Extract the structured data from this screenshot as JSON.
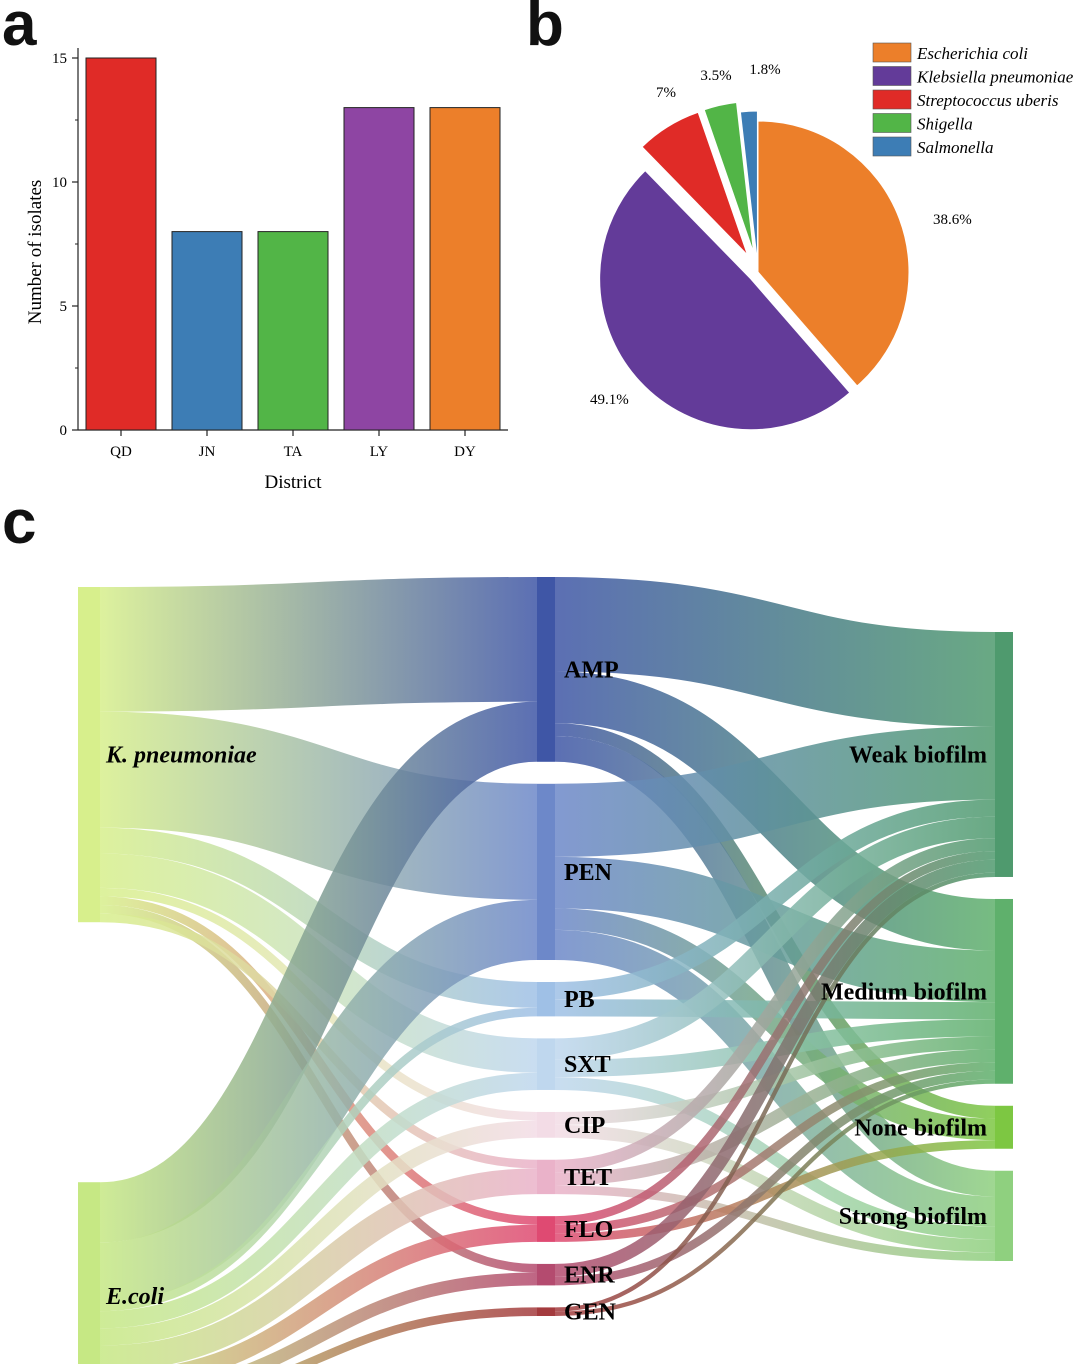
{
  "panels": {
    "a": "a",
    "b": "b",
    "c": "c"
  },
  "chart_data": [
    {
      "panel": "a",
      "type": "bar",
      "xlabel": "District",
      "ylabel": "Number of isolates",
      "ylim": [
        0,
        15
      ],
      "yticks": [
        0,
        5,
        10,
        15
      ],
      "categories": [
        "QD",
        "JN",
        "TA",
        "LY",
        "DY"
      ],
      "values": [
        15,
        8,
        8,
        13,
        13
      ],
      "colors": [
        "#e02b27",
        "#3d7db5",
        "#52b547",
        "#8e45a3",
        "#ec7f2a"
      ],
      "grid": false
    },
    {
      "panel": "b",
      "type": "pie",
      "slices": [
        {
          "name": "Escherichia coli",
          "percent": 38.6,
          "label": "38.6%",
          "color": "#ec7f2a",
          "exploded": false
        },
        {
          "name": "Klebsiella pneumoniae",
          "percent": 49.1,
          "label": "49.1%",
          "color": "#633b99",
          "exploded": true
        },
        {
          "name": "Streptococcus uberis",
          "percent": 7,
          "label": "7%",
          "color": "#e02b27",
          "exploded": true
        },
        {
          "name": "Shigella",
          "percent": 3.5,
          "label": "3.5%",
          "color": "#52b547",
          "exploded": true
        },
        {
          "name": "Salmonella",
          "percent": 1.8,
          "label": "1.8%",
          "color": "#3d7db5",
          "exploded": true
        }
      ],
      "legend_position": "top-right"
    },
    {
      "panel": "c",
      "type": "sankey",
      "columns": [
        {
          "nodes": [
            {
              "id": "kp",
              "label": "K. pneumoniae",
              "italic": true,
              "color": "#d7ef8c"
            },
            {
              "id": "ec",
              "label": "E.coli",
              "italic": true,
              "color": "#c6e884"
            }
          ]
        },
        {
          "nodes": [
            {
              "id": "AMP",
              "label": "AMP",
              "color": "#3f56a6"
            },
            {
              "id": "PEN",
              "label": "PEN",
              "color": "#6d88c9"
            },
            {
              "id": "PB",
              "label": "PB",
              "color": "#9fc0e6"
            },
            {
              "id": "SXT",
              "label": "SXT",
              "color": "#bfd7ee"
            },
            {
              "id": "CIP",
              "label": "CIP",
              "color": "#f3dce6"
            },
            {
              "id": "TET",
              "label": "TET",
              "color": "#eab2c9"
            },
            {
              "id": "FLO",
              "label": "FLO",
              "color": "#df4a72"
            },
            {
              "id": "ENR",
              "label": "ENR",
              "color": "#b44b6f"
            },
            {
              "id": "GEN",
              "label": "GEN",
              "color": "#a43b3e"
            }
          ]
        },
        {
          "nodes": [
            {
              "id": "weak",
              "label": "Weak biofilm",
              "color": "#4f9a6e"
            },
            {
              "id": "medium",
              "label": "Medium biofilm",
              "color": "#5fb06c"
            },
            {
              "id": "none",
              "label": "None biofilm",
              "color": "#7dc742"
            },
            {
              "id": "strong",
              "label": "Strong biofilm",
              "color": "#8fd07f"
            }
          ]
        }
      ],
      "links": [
        {
          "source": "kp",
          "target": "AMP",
          "value": 29
        },
        {
          "source": "kp",
          "target": "PEN",
          "value": 27
        },
        {
          "source": "kp",
          "target": "PB",
          "value": 6
        },
        {
          "source": "kp",
          "target": "SXT",
          "value": 8
        },
        {
          "source": "kp",
          "target": "CIP",
          "value": 2
        },
        {
          "source": "kp",
          "target": "FLO",
          "value": 2
        },
        {
          "source": "kp",
          "target": "ENR",
          "value": 2
        },
        {
          "source": "kp",
          "target": "TET",
          "value": 2
        },
        {
          "source": "ec",
          "target": "AMP",
          "value": 14
        },
        {
          "source": "ec",
          "target": "PEN",
          "value": 14
        },
        {
          "source": "ec",
          "target": "PB",
          "value": 2
        },
        {
          "source": "ec",
          "target": "SXT",
          "value": 4
        },
        {
          "source": "ec",
          "target": "CIP",
          "value": 4
        },
        {
          "source": "ec",
          "target": "TET",
          "value": 6
        },
        {
          "source": "ec",
          "target": "FLO",
          "value": 4
        },
        {
          "source": "ec",
          "target": "ENR",
          "value": 3
        },
        {
          "source": "ec",
          "target": "GEN",
          "value": 2
        },
        {
          "source": "AMP",
          "target": "weak",
          "value": 22
        },
        {
          "source": "AMP",
          "target": "medium",
          "value": 12
        },
        {
          "source": "AMP",
          "target": "none",
          "value": 3
        },
        {
          "source": "AMP",
          "target": "strong",
          "value": 6
        },
        {
          "source": "PEN",
          "target": "weak",
          "value": 17
        },
        {
          "source": "PEN",
          "target": "medium",
          "value": 12
        },
        {
          "source": "PEN",
          "target": "none",
          "value": 5
        },
        {
          "source": "PEN",
          "target": "strong",
          "value": 7
        },
        {
          "source": "PB",
          "target": "weak",
          "value": 4
        },
        {
          "source": "PB",
          "target": "medium",
          "value": 4
        },
        {
          "source": "SXT",
          "target": "weak",
          "value": 5
        },
        {
          "source": "SXT",
          "target": "medium",
          "value": 4
        },
        {
          "source": "SXT",
          "target": "strong",
          "value": 3
        },
        {
          "source": "CIP",
          "target": "medium",
          "value": 3
        },
        {
          "source": "CIP",
          "target": "strong",
          "value": 3
        },
        {
          "source": "TET",
          "target": "weak",
          "value": 3
        },
        {
          "source": "TET",
          "target": "medium",
          "value": 3
        },
        {
          "source": "TET",
          "target": "strong",
          "value": 2
        },
        {
          "source": "FLO",
          "target": "weak",
          "value": 2
        },
        {
          "source": "FLO",
          "target": "medium",
          "value": 2
        },
        {
          "source": "FLO",
          "target": "none",
          "value": 2
        },
        {
          "source": "ENR",
          "target": "weak",
          "value": 3
        },
        {
          "source": "ENR",
          "target": "medium",
          "value": 2
        },
        {
          "source": "GEN",
          "target": "weak",
          "value": 1
        },
        {
          "source": "GEN",
          "target": "medium",
          "value": 1
        }
      ]
    }
  ]
}
